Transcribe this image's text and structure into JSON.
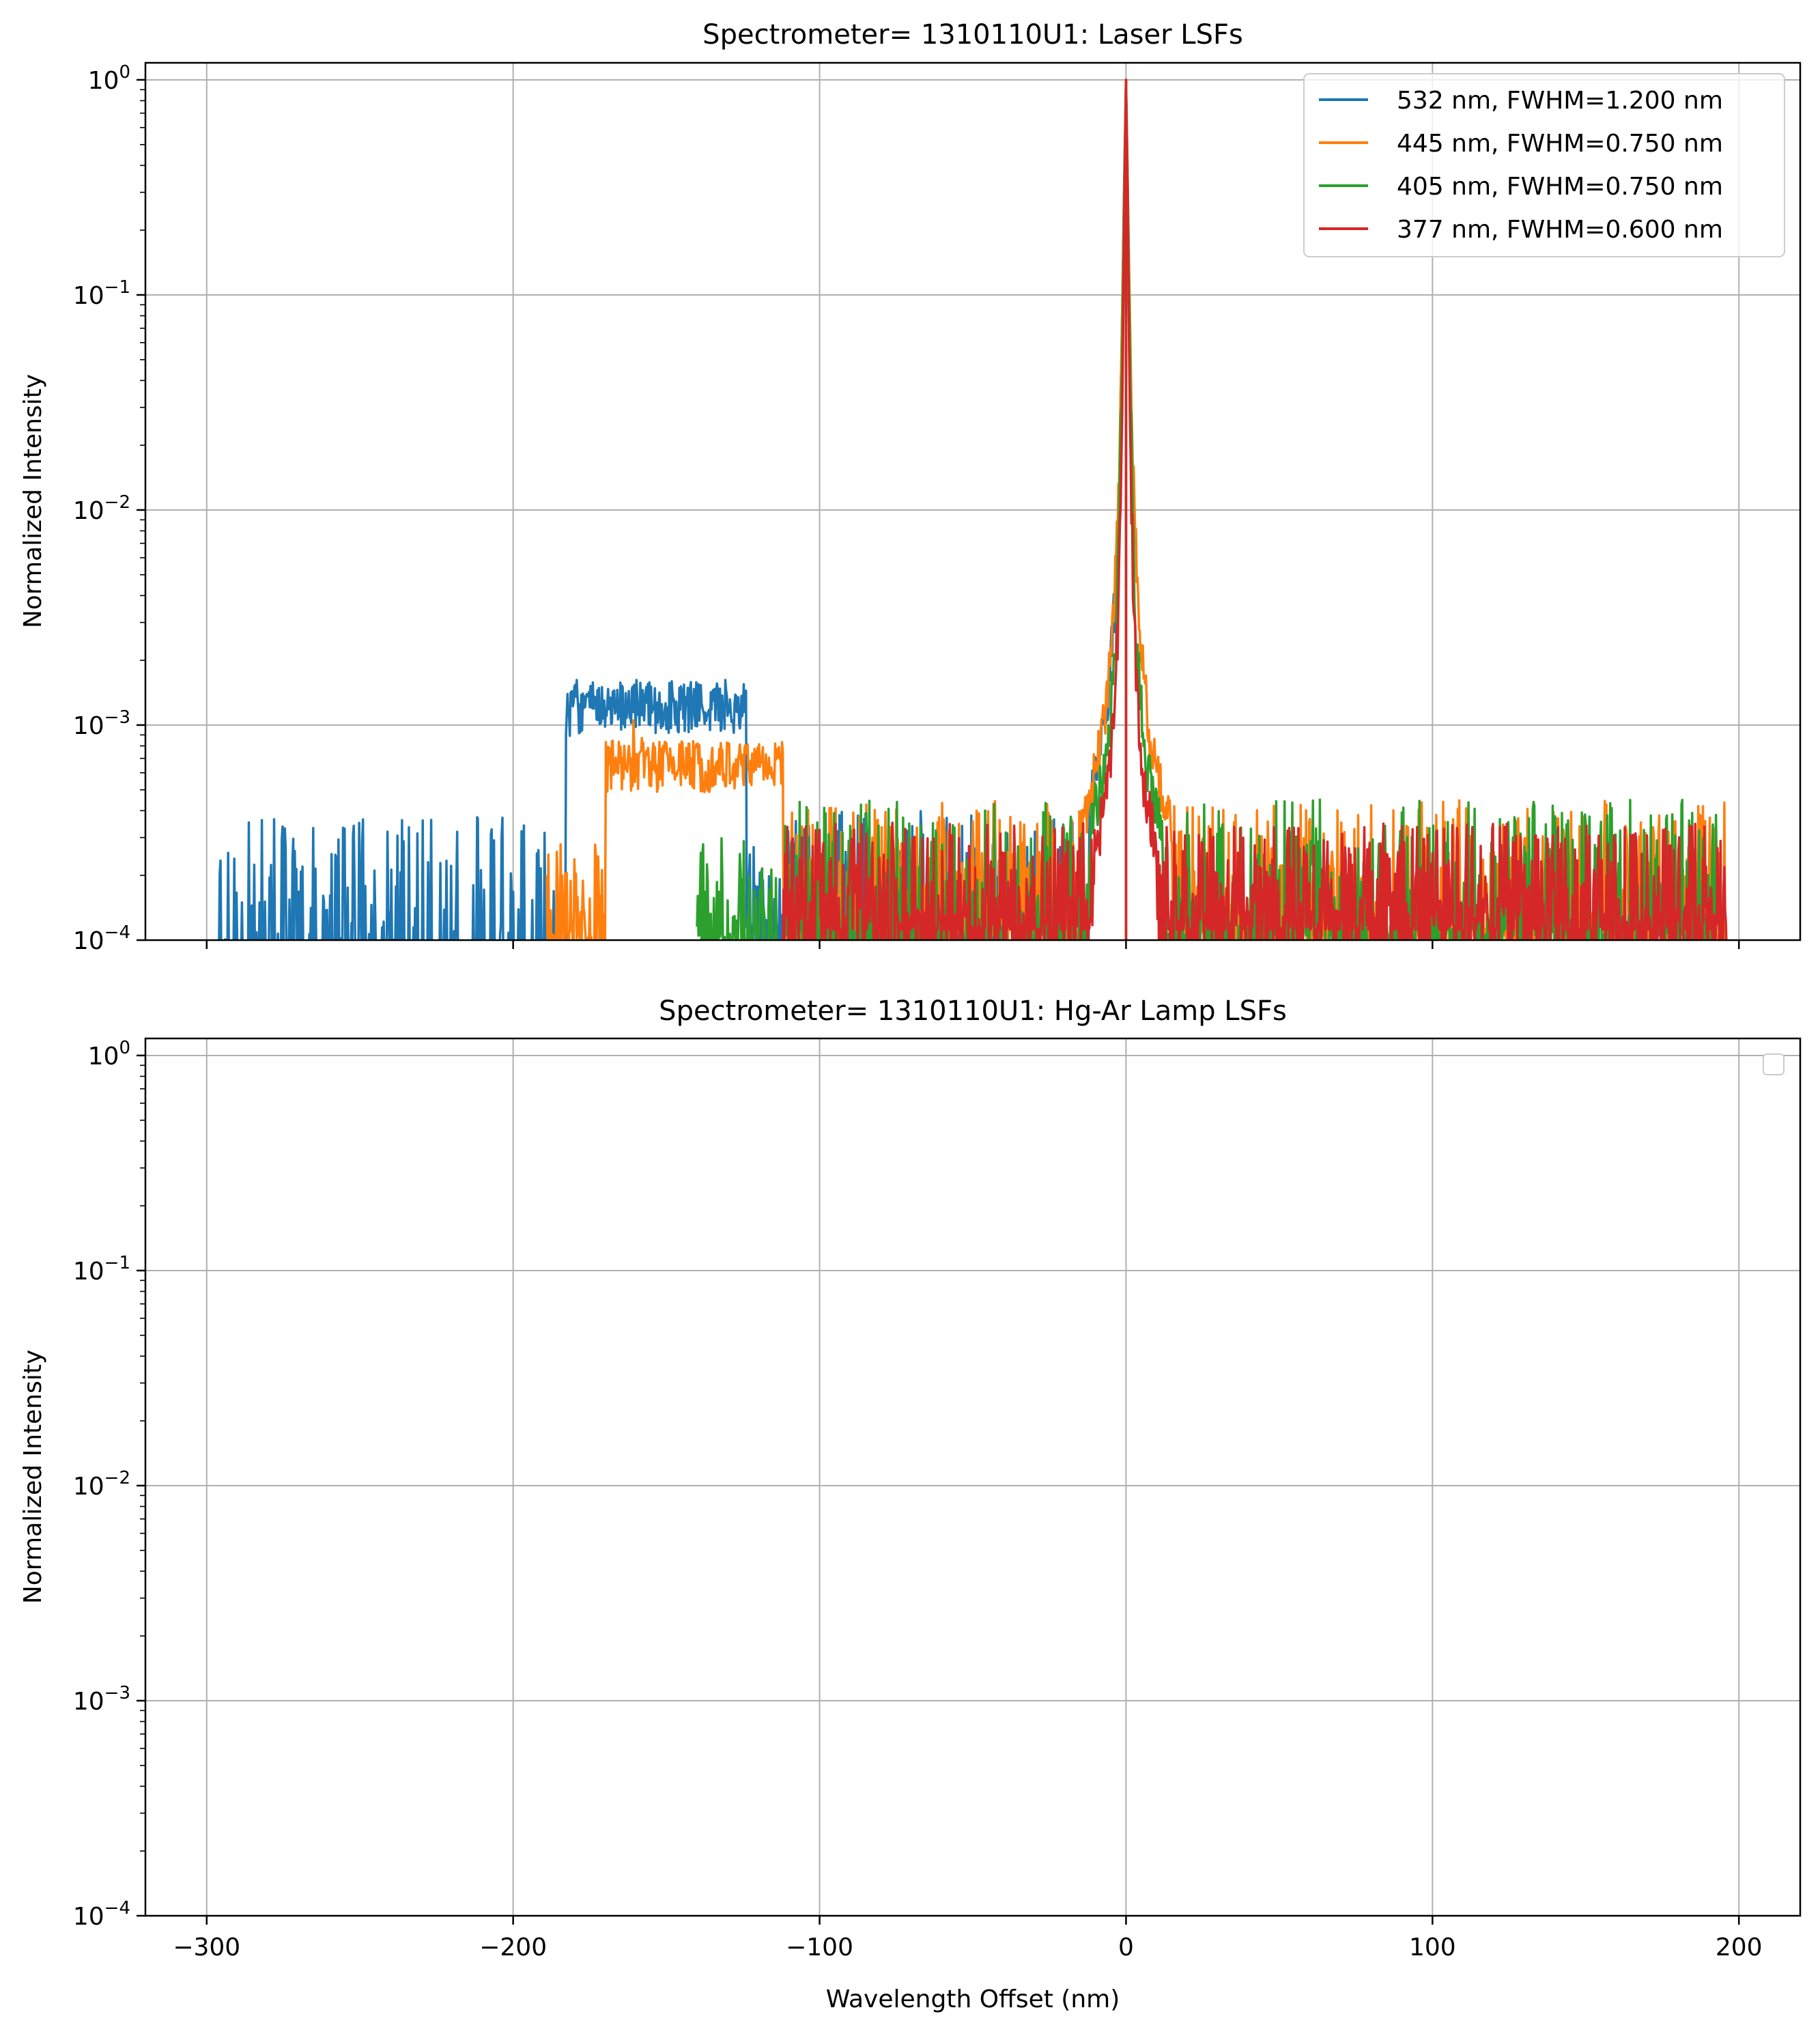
{
  "chart_data": [
    {
      "type": "line",
      "title": "Spectrometer= 1310110U1: Laser LSFs",
      "xlabel": "",
      "ylabel": "Normalized Intensity",
      "xlim": [
        -320,
        220
      ],
      "ylim": [
        0.0001,
        1.2
      ],
      "yscale": "log",
      "grid": true,
      "legend_position": "upper right",
      "x_ticks": [
        -300,
        -200,
        -100,
        0,
        100,
        200
      ],
      "y_ticks": [
        {
          "value": 1,
          "base": "10",
          "exp": "0"
        },
        {
          "value": 0.1,
          "base": "10",
          "exp": "−1"
        },
        {
          "value": 0.01,
          "base": "10",
          "exp": "−2"
        },
        {
          "value": 0.001,
          "base": "10",
          "exp": "−3"
        },
        {
          "value": 0.0001,
          "base": "10",
          "exp": "−4"
        }
      ],
      "series": [
        {
          "name": "532 nm, FWHM=1.200 nm",
          "color": "#1f77b4",
          "x_range": [
            -297,
            0
          ],
          "peak": {
            "x": 0,
            "y": 1.0
          },
          "core": [
            [
              -12,
              0.00038
            ],
            [
              -6,
              0.0012
            ],
            [
              -3,
              0.005
            ],
            [
              -1.5,
              0.05
            ],
            [
              -0.6,
              0.35
            ],
            [
              0,
              1.0
            ],
            [
              0.6,
              0.35
            ],
            [
              1.5,
              0.05
            ],
            [
              3,
              0.005
            ],
            [
              6,
              0.0012
            ],
            [
              10,
              0.0004
            ]
          ],
          "features": [
            {
              "x": [
                -296,
                -183
              ],
              "level": 0.00011,
              "spike_max": 0.00038,
              "density": 0.45
            },
            {
              "x": [
                -183,
                -181
              ],
              "level": 0.0011,
              "spike_max": 0.0021,
              "density": 1.0
            },
            {
              "x": [
                -181,
                -124
              ],
              "level": 0.00122,
              "spike_max": 0.00162,
              "density": 1.0
            },
            {
              "x": [
                -124,
                -15
              ],
              "level": 0.00016,
              "spike_max": 0.0004,
              "density": 0.55
            }
          ]
        },
        {
          "name": "445 nm, FWHM=0.750 nm",
          "color": "#ff7f0e",
          "x_range": [
            -189,
            196
          ],
          "peak": {
            "x": 0,
            "y": 1.0
          },
          "core": [
            [
              -15,
              0.0003
            ],
            [
              -8,
              0.0008
            ],
            [
              -4,
              0.003
            ],
            [
              -2,
              0.02
            ],
            [
              -0.8,
              0.2
            ],
            [
              0,
              1.0
            ],
            [
              0.8,
              0.2
            ],
            [
              2,
              0.02
            ],
            [
              4,
              0.003
            ],
            [
              8,
              0.0008
            ],
            [
              15,
              0.0003
            ]
          ],
          "features": [
            {
              "x": [
                -189,
                -170
              ],
              "level": 0.00014,
              "spike_max": 0.00028,
              "density": 0.7
            },
            {
              "x": [
                -170,
                -112
              ],
              "level": 0.00065,
              "spike_max": 0.00105,
              "density": 1.0
            },
            {
              "x": [
                -112,
                196
              ],
              "level": 0.00015,
              "spike_max": 0.00045,
              "density": 0.65
            }
          ]
        },
        {
          "name": "405 nm, FWHM=0.750 nm",
          "color": "#2ca02c",
          "x_range": [
            -140,
            193
          ],
          "peak": {
            "x": 0,
            "y": 1.0
          },
          "core": [
            [
              -12,
              0.0003
            ],
            [
              -6,
              0.0007
            ],
            [
              -3,
              0.003
            ],
            [
              -1.5,
              0.03
            ],
            [
              -0.6,
              0.3
            ],
            [
              0,
              1.0
            ],
            [
              0.6,
              0.3
            ],
            [
              1.5,
              0.03
            ],
            [
              3,
              0.003
            ],
            [
              6,
              0.0007
            ],
            [
              12,
              0.0003
            ]
          ],
          "features": [
            {
              "x": [
                -140,
                -112
              ],
              "level": 0.00014,
              "spike_max": 0.0003,
              "density": 0.7
            },
            {
              "x": [
                -112,
                193
              ],
              "level": 0.00015,
              "spike_max": 0.00045,
              "density": 0.6
            }
          ]
        },
        {
          "name": "377 nm, FWHM=0.600 nm",
          "color": "#d62728",
          "x_range": [
            -112,
            196
          ],
          "peak": {
            "x": 0,
            "y": 1.0
          },
          "core": [
            [
              -10,
              0.00025
            ],
            [
              -5,
              0.0006
            ],
            [
              -2.5,
              0.003
            ],
            [
              -1.2,
              0.03
            ],
            [
              -0.5,
              0.3
            ],
            [
              0,
              1.0
            ],
            [
              0.5,
              0.3
            ],
            [
              1.2,
              0.03
            ],
            [
              2.5,
              0.003
            ],
            [
              5,
              0.0006
            ],
            [
              10,
              0.00025
            ]
          ],
          "features": [
            {
              "x": [
                -112,
                196
              ],
              "level": 0.00016,
              "spike_max": 0.00035,
              "density": 0.75
            }
          ]
        }
      ]
    },
    {
      "type": "line",
      "title": "Spectrometer= 1310110U1: Hg-Ar Lamp LSFs",
      "xlabel": "Wavelength Offset (nm)",
      "ylabel": "Normalized Intensity",
      "xlim": [
        -320,
        220
      ],
      "ylim": [
        0.0001,
        1.2
      ],
      "yscale": "log",
      "grid": true,
      "legend_position": "upper right",
      "x_ticks": [
        -300,
        -200,
        -100,
        0,
        100,
        200
      ],
      "x_tick_labels": [
        "−300",
        "−200",
        "−100",
        "0",
        "100",
        "200"
      ],
      "y_ticks": [
        {
          "value": 1,
          "base": "10",
          "exp": "0"
        },
        {
          "value": 0.1,
          "base": "10",
          "exp": "−1"
        },
        {
          "value": 0.01,
          "base": "10",
          "exp": "−2"
        },
        {
          "value": 0.001,
          "base": "10",
          "exp": "−3"
        },
        {
          "value": 0.0001,
          "base": "10",
          "exp": "−4"
        }
      ],
      "series": []
    }
  ]
}
